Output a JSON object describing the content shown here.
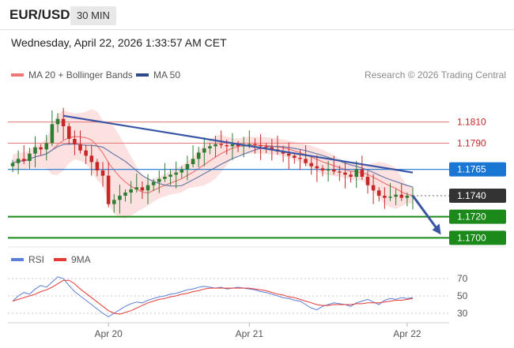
{
  "header": {
    "symbol": "EUR/USD",
    "period": "30 MIN",
    "datetime": "Wednesday, April 22, 2026 1:33:57 AM CET"
  },
  "legend": {
    "bollinger": "MA 20 + Bollinger Bands",
    "ma50": "MA 50",
    "credit": "Research © 2026 Trading Central",
    "rsi": "RSI",
    "ma9": "9MA"
  },
  "colors": {
    "bull": "#2e7d32",
    "bear": "#c62828",
    "band_fill": "#f9c9c9",
    "ma20": "#ee7777",
    "ma50": "#6a7aa8",
    "trendline": "#3a55a4",
    "resistance": "#e57373",
    "pivot": "#1976d2",
    "support": "#1b8a1b",
    "last_price": "#333333",
    "rsi": "#5b7fd6",
    "rsi_ma": "#e53935"
  },
  "chart_data": [
    {
      "type": "candlestick",
      "title": "",
      "x_tick_labels": [
        "Apr 20",
        "Apr 21",
        "Apr 22"
      ],
      "ylim": [
        1.1692,
        1.1845
      ],
      "levels": [
        {
          "label": "1.1810",
          "value": 1.181,
          "kind": "resistance"
        },
        {
          "label": "1.1790",
          "value": 1.179,
          "kind": "resistance"
        },
        {
          "label": "1.1765",
          "value": 1.1765,
          "kind": "pivot"
        },
        {
          "label": "1.1740",
          "value": 1.174,
          "kind": "last"
        },
        {
          "label": "1.1720",
          "value": 1.172,
          "kind": "support"
        },
        {
          "label": "1.1700",
          "value": 1.17,
          "kind": "support"
        }
      ],
      "bar_count": 72,
      "close": [
        1.1771,
        1.1775,
        1.1773,
        1.178,
        1.1786,
        1.1784,
        1.179,
        1.1808,
        1.1813,
        1.1806,
        1.1794,
        1.1789,
        1.1783,
        1.1778,
        1.1772,
        1.1764,
        1.1759,
        1.1732,
        1.1736,
        1.174,
        1.1743,
        1.1746,
        1.1748,
        1.1745,
        1.175,
        1.1753,
        1.1756,
        1.1758,
        1.176,
        1.1762,
        1.1765,
        1.177,
        1.1775,
        1.1781,
        1.1785,
        1.1787,
        1.1789,
        1.1788,
        1.1787,
        1.1789,
        1.1787,
        1.1788,
        1.1789,
        1.1788,
        1.1787,
        1.1786,
        1.1784,
        1.1782,
        1.178,
        1.1778,
        1.1776,
        1.1775,
        1.1771,
        1.1768,
        1.1766,
        1.1764,
        1.1765,
        1.1763,
        1.1762,
        1.176,
        1.1758,
        1.1765,
        1.1758,
        1.175,
        1.1745,
        1.174,
        1.1738,
        1.1739,
        1.1741,
        1.1738,
        1.174,
        1.174
      ],
      "trendline": {
        "from": [
          9,
          1.1816
        ],
        "to": [
          71,
          1.1762
        ]
      },
      "projection": {
        "from": [
          71,
          1.174
        ],
        "to": [
          76,
          1.1703
        ]
      }
    },
    {
      "type": "line",
      "title": "",
      "series": [
        {
          "name": "RSI"
        },
        {
          "name": "9MA"
        }
      ],
      "y_tick_labels": [
        "70",
        "50",
        "30"
      ],
      "ylim": [
        20,
        80
      ],
      "x_tick_labels": [
        "Apr 20",
        "Apr 21",
        "Apr 22"
      ],
      "rsi": [
        44,
        50,
        54,
        52,
        58,
        62,
        60,
        66,
        72,
        70,
        62,
        55,
        50,
        45,
        40,
        35,
        30,
        26,
        30,
        34,
        38,
        41,
        43,
        42,
        45,
        47,
        49,
        50,
        52,
        53,
        55,
        57,
        58,
        60,
        61,
        60,
        59,
        60,
        58,
        59,
        60,
        59,
        58,
        57,
        55,
        54,
        52,
        50,
        48,
        47,
        45,
        44,
        40,
        36,
        34,
        38,
        40,
        42,
        41,
        40,
        38,
        42,
        44,
        46,
        43,
        40,
        45,
        47,
        46,
        48,
        47,
        48
      ],
      "rsi_ma": [
        44,
        46,
        48,
        50,
        52,
        55,
        57,
        60,
        64,
        68,
        68,
        64,
        58,
        53,
        48,
        43,
        38,
        33,
        30,
        29,
        31,
        33,
        36,
        39,
        42,
        44,
        46,
        47,
        49,
        50,
        52,
        53,
        55,
        56,
        58,
        59,
        59,
        59,
        59,
        59,
        59,
        59,
        59,
        58,
        57,
        56,
        54,
        52,
        51,
        49,
        48,
        46,
        44,
        42,
        40,
        39,
        39,
        40,
        40,
        40,
        40,
        41,
        41,
        42,
        42,
        42,
        43,
        44,
        45,
        45,
        46,
        47
      ]
    }
  ]
}
